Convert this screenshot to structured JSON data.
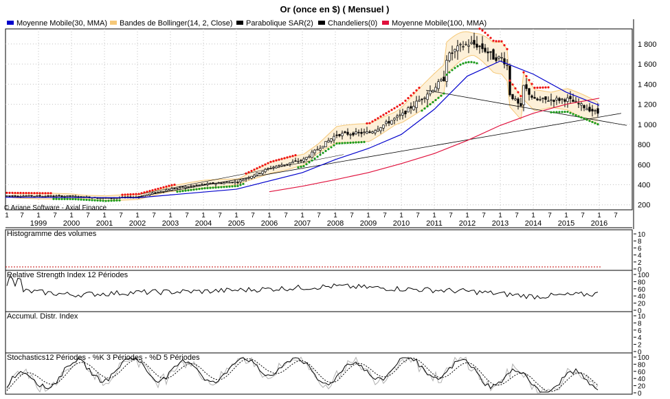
{
  "title": "Or (once en $)  ( Mensuel )",
  "legend": [
    {
      "label": "Moyenne Mobile(30, MMA)",
      "color": "#0000cc"
    },
    {
      "label": "Bandes de Bollinger(14, 2, Close)",
      "color": "#f5c878"
    },
    {
      "label": "Parabolique SAR(2)",
      "color": "#000000"
    },
    {
      "label": "Chandeliers(0)",
      "color": "#000000"
    },
    {
      "label": "Moyenne Mobile(100, MMA)",
      "color": "#e0103c"
    }
  ],
  "watermark": "© Ariane Software - Axial Finance",
  "colors": {
    "ma30": "#0000cc",
    "ma100": "#e0103c",
    "bollinger_band": "#f5c878",
    "bollinger_fill": "#fdf0d8",
    "sar_up": "#1a9a1a",
    "sar_down": "#ee1111",
    "candle": "#000000",
    "grid": "#c0c0c0",
    "volume_ref": "#c00000"
  },
  "x_axis": {
    "month_ticks": [
      "1",
      "7"
    ],
    "years": [
      "1999",
      "2000",
      "2001",
      "2002",
      "2003",
      "2004",
      "2005",
      "2006",
      "2007",
      "2008",
      "2009",
      "2010",
      "2011",
      "2012",
      "2013",
      "2014",
      "2015",
      "2016"
    ]
  },
  "panels": {
    "volume": {
      "label": "Histogramme des volumes",
      "ticks": [
        "10",
        "8",
        "6",
        "4",
        "2",
        "0"
      ]
    },
    "rsi": {
      "label": "Relative Strength Index 12 Périodes",
      "ticks": [
        "100",
        "80",
        "60",
        "40",
        "20",
        "0"
      ]
    },
    "accum": {
      "label": "Accumul. Distr. Index",
      "ticks": [
        "10",
        "8",
        "6",
        "4",
        "2",
        "0"
      ]
    },
    "stoch": {
      "label": "Stochastics12 Périodes  -  %K 3 Périodes  -  %D 5 Périodes",
      "ticks": [
        "100",
        "80",
        "60",
        "40",
        "20",
        "0"
      ]
    }
  },
  "chart_data": [
    {
      "type": "candlestick",
      "title": "Or (once en $)  ( Mensuel )",
      "y_ticks": [
        "1 800",
        "1 600",
        "1 400",
        "1 200",
        "1 000",
        "800",
        "600",
        "400",
        "200"
      ],
      "ylim": [
        150,
        1950
      ],
      "x": [
        "1998-01",
        "1999-01",
        "2000-01",
        "2001-01",
        "2002-01",
        "2003-01",
        "2004-01",
        "2005-01",
        "2006-01",
        "2007-01",
        "2008-01",
        "2009-01",
        "2010-01",
        "2011-01",
        "2012-01",
        "2013-01",
        "2014-01",
        "2015-01",
        "2016-01"
      ],
      "close_approx": [
        290,
        287,
        285,
        265,
        280,
        360,
        405,
        430,
        570,
        650,
        900,
        920,
        1100,
        1380,
        1670,
        1660,
        1240,
        1250,
        1100
      ],
      "series": [
        {
          "name": "Moyenne Mobile(30, MMA)",
          "x": [
            "1998-01",
            "2002-01",
            "2005-01",
            "2007-01",
            "2008-01",
            "2009-01",
            "2010-01",
            "2011-01",
            "2012-01",
            "2013-01",
            "2014-01",
            "2015-01",
            "2016-01"
          ],
          "values": [
            275,
            270,
            355,
            520,
            650,
            760,
            900,
            1150,
            1480,
            1630,
            1500,
            1320,
            1190
          ]
        },
        {
          "name": "Moyenne Mobile(100, MMA)",
          "x": [
            "2006-01",
            "2007-01",
            "2008-01",
            "2009-01",
            "2010-01",
            "2011-01",
            "2012-01",
            "2013-01",
            "2014-01",
            "2015-01",
            "2016-01"
          ],
          "values": [
            330,
            385,
            450,
            520,
            610,
            710,
            840,
            990,
            1110,
            1200,
            1260
          ]
        }
      ]
    },
    {
      "type": "line",
      "title": "Relative Strength Index 12 Périodes",
      "ylim": [
        0,
        100
      ],
      "x": [
        "1998-01",
        "2000-01",
        "2002-01",
        "2004-01",
        "2006-01",
        "2008-01",
        "2010-01",
        "2012-01",
        "2014-01",
        "2016-01"
      ],
      "values": [
        60,
        45,
        52,
        55,
        62,
        70,
        62,
        55,
        40,
        48
      ]
    },
    {
      "type": "line",
      "title": "Stochastics12 Périodes  -  %K 3 Périodes  -  %D 5 Périodes",
      "ylim": [
        0,
        100
      ],
      "x": [
        "1998-01",
        "2000-01",
        "2002-01",
        "2004-01",
        "2006-01",
        "2008-01",
        "2010-01",
        "2012-01",
        "2014-01",
        "2016-01"
      ],
      "values": [
        20,
        60,
        70,
        55,
        80,
        50,
        75,
        60,
        25,
        35
      ]
    }
  ]
}
